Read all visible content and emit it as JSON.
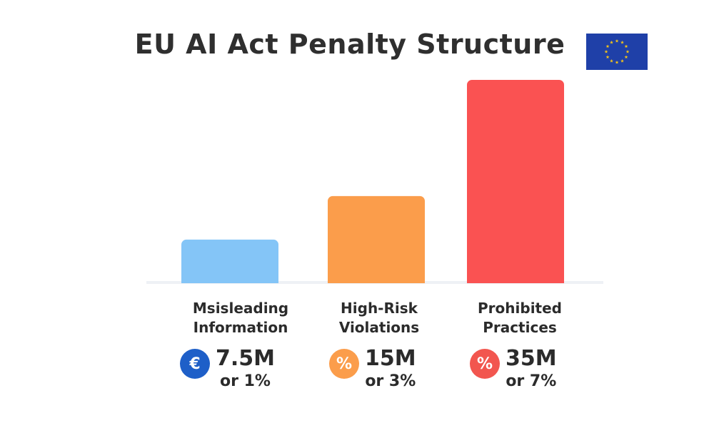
{
  "colors": {
    "blue": "#84c5f7",
    "orange": "#fb9d4b",
    "red": "#fa5252",
    "badge_blue": "#1e5fc8",
    "badge_orange": "#fb9d4b",
    "badge_red": "#f2564f",
    "flag_blue": "#1f40a8",
    "flag_star": "#f5c518"
  },
  "flag": {
    "icon": "eu-flag-icon"
  },
  "chart_data": {
    "type": "bar",
    "title": "EU AI Act Penalty Structure",
    "categories": [
      "Msisleading Information",
      "High-Risk Violations",
      "Prohibited Practices"
    ],
    "values": [
      7.5,
      15,
      35
    ],
    "ylim": [
      0,
      35
    ],
    "grid": false,
    "legend": "none",
    "bars": [
      {
        "label_lines": [
          "Msisleading",
          "Information"
        ],
        "amount": "7.5M",
        "percent": "or 1%",
        "badge_icon": "euro-icon",
        "badge_symbol": "€",
        "color": "#84c5f7",
        "badge_color": "#1e5fc8"
      },
      {
        "label_lines": [
          "High-Risk",
          "Violations"
        ],
        "amount": "15M",
        "percent": "or 3%",
        "badge_icon": "percent-icon",
        "badge_symbol": "%",
        "color": "#fb9d4b",
        "badge_color": "#fb9d4b"
      },
      {
        "label_lines": [
          "Prohibited",
          "Practices"
        ],
        "amount": "35M",
        "percent": "or 7%",
        "badge_icon": "percent-icon",
        "badge_symbol": "%",
        "color": "#fa5252",
        "badge_color": "#f2564f"
      }
    ]
  }
}
